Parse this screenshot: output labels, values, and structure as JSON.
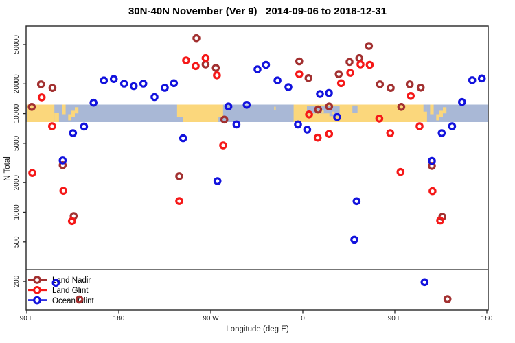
{
  "title": "30N-40N November (Ver 9)   2014-09-06 to 2018-12-31",
  "chart_data": {
    "type": "scatter",
    "title": "30N-40N November (Ver 9)   2014-09-06 to 2018-12-31",
    "xlabel": "Longitude (deg E)",
    "ylabel": "N Total",
    "x_axis": {
      "description": "degrees eastward from 90E, axis spans 450 degrees (90E to 180 wrapping past 180/90W/0/90E)",
      "span_deg": 450,
      "ticks": [
        {
          "off": 0,
          "label": "90 E"
        },
        {
          "off": 90,
          "label": "180"
        },
        {
          "off": 180,
          "label": "90 W"
        },
        {
          "off": 270,
          "label": "0"
        },
        {
          "off": 360,
          "label": "90 E"
        },
        {
          "off": 450,
          "label": "180"
        }
      ]
    },
    "y_axis": {
      "scale": "log10",
      "ticks": [
        200,
        500,
        1000,
        2000,
        5000,
        10000,
        20000,
        50000
      ],
      "approx_range": [
        100,
        77000
      ]
    },
    "grid": false,
    "legend_position": "bottom-left",
    "series": [
      {
        "name": "Land Nadir",
        "color": "#A23030",
        "marker": "open-circle",
        "points": [
          [
            4.9,
            11700
          ],
          [
            13.9,
            19800
          ],
          [
            25.1,
            18200
          ],
          [
            35.1,
            3000
          ],
          [
            45.9,
            915
          ],
          [
            51.5,
            131
          ],
          [
            149.1,
            2320
          ],
          [
            165.9,
            58000
          ],
          [
            174.9,
            31500
          ],
          [
            184.9,
            29000
          ],
          [
            193.2,
            8700
          ],
          [
            266.5,
            33800
          ],
          [
            275.6,
            22900
          ],
          [
            285.0,
            11000
          ],
          [
            295.7,
            11800
          ],
          [
            305.1,
            25100
          ],
          [
            315.7,
            33300
          ],
          [
            325.3,
            36500
          ],
          [
            334.7,
            48400
          ],
          [
            345.4,
            19800
          ],
          [
            356.0,
            18200
          ],
          [
            366.3,
            11700
          ],
          [
            374.6,
            19800
          ],
          [
            385.3,
            18300
          ],
          [
            396.3,
            2950
          ],
          [
            406.5,
            900
          ],
          [
            411.5,
            132
          ]
        ]
      },
      {
        "name": "Land Glint",
        "color": "#F51818",
        "marker": "open-circle",
        "points": [
          [
            5.4,
            2500
          ],
          [
            14.6,
            14600
          ],
          [
            24.7,
            7450
          ],
          [
            35.8,
            1650
          ],
          [
            44.1,
            815
          ],
          [
            149.1,
            1300
          ],
          [
            155.8,
            34600
          ],
          [
            165.2,
            30300
          ],
          [
            174.9,
            36500
          ],
          [
            186.0,
            24400
          ],
          [
            192.1,
            4760
          ],
          [
            266.5,
            25100
          ],
          [
            276.1,
            9800
          ],
          [
            284.6,
            5700
          ],
          [
            295.7,
            6230
          ],
          [
            307.4,
            20300
          ],
          [
            316.4,
            25900
          ],
          [
            326.4,
            31500
          ],
          [
            335.4,
            31200
          ],
          [
            344.8,
            8900
          ],
          [
            355.5,
            6350
          ],
          [
            365.6,
            2560
          ],
          [
            375.6,
            15100
          ],
          [
            384.2,
            7450
          ],
          [
            396.9,
            1640
          ],
          [
            404.3,
            825
          ]
        ]
      },
      {
        "name": "Ocean Glint",
        "color": "#1212DD",
        "marker": "open-circle",
        "points": [
          [
            28.4,
            193
          ],
          [
            35.1,
            3350
          ],
          [
            45.2,
            6350
          ],
          [
            56.0,
            7400
          ],
          [
            65.3,
            12900
          ],
          [
            75.4,
            21700
          ],
          [
            85.1,
            22400
          ],
          [
            95.2,
            20100
          ],
          [
            104.6,
            19000
          ],
          [
            114.0,
            20100
          ],
          [
            124.9,
            14700
          ],
          [
            135.0,
            18250
          ],
          [
            143.9,
            20300
          ],
          [
            152.9,
            5630
          ],
          [
            186.5,
            2070
          ],
          [
            197.2,
            11800
          ],
          [
            205.1,
            7760
          ],
          [
            215.1,
            12270
          ],
          [
            225.7,
            28100
          ],
          [
            234.0,
            31200
          ],
          [
            245.2,
            21700
          ],
          [
            255.9,
            18550
          ],
          [
            265.3,
            7760
          ],
          [
            274.3,
            6870
          ],
          [
            286.8,
            15800
          ],
          [
            295.5,
            16150
          ],
          [
            303.6,
            9230
          ],
          [
            320.4,
            528
          ],
          [
            322.6,
            1295
          ],
          [
            389.1,
            196
          ],
          [
            396.3,
            3320
          ],
          [
            405.9,
            6350
          ],
          [
            416.0,
            7450
          ],
          [
            425.7,
            13100
          ],
          [
            435.7,
            21800
          ],
          [
            445.1,
            22700
          ]
        ]
      }
    ],
    "map_band": {
      "note": "horizontal world-map strip (30N-40N coastlines) drawn across plot",
      "value_top": 12300,
      "value_bottom": 8200,
      "ocean_color": "#A9B8D6",
      "land_color": "#FBD77C",
      "land_blocks": [
        {
          "x": [
            0,
            27
          ],
          "f": [
            0,
            1
          ]
        },
        {
          "x": [
            27,
            31.5
          ],
          "f": [
            0.45,
            1
          ]
        },
        {
          "x": [
            34.5,
            38
          ],
          "f": [
            0,
            0.55
          ]
        },
        {
          "x": [
            40.5,
            43
          ],
          "f": [
            0.55,
            0.9
          ]
        },
        {
          "x": [
            43,
            47
          ],
          "f": [
            0.35,
            0.7
          ]
        },
        {
          "x": [
            47,
            50.5
          ],
          "f": [
            0.15,
            0.5
          ]
        },
        {
          "x": [
            147,
            192
          ],
          "f": [
            0,
            0.72
          ]
        },
        {
          "x": [
            152.5,
            187.5
          ],
          "f": [
            0.72,
            1
          ]
        },
        {
          "x": [
            242,
            243.5
          ],
          "f": [
            0.12,
            0.3
          ]
        },
        {
          "x": [
            261,
            391.5
          ],
          "f": [
            0,
            1
          ]
        },
        {
          "x": [
            394.5,
            398
          ],
          "f": [
            0,
            0.55
          ]
        },
        {
          "x": [
            400.5,
            403
          ],
          "f": [
            0.55,
            0.9
          ]
        },
        {
          "x": [
            403,
            407
          ],
          "f": [
            0.35,
            0.7
          ]
        },
        {
          "x": [
            407,
            410.5
          ],
          "f": [
            0.15,
            0.5
          ]
        }
      ],
      "water_patches": [
        {
          "x": [
            274,
            306
          ],
          "f": [
            0.1,
            0.5
          ]
        },
        {
          "x": [
            296,
            306
          ],
          "f": [
            0.5,
            0.66
          ]
        },
        {
          "x": [
            318.5,
            323.5
          ],
          "f": [
            0.05,
            0.45
          ]
        },
        {
          "x": [
            388,
            391.5
          ],
          "f": [
            0,
            0.4
          ]
        }
      ],
      "island_patches": [
        {
          "x": [
            283,
            284.5
          ],
          "f": [
            0.28,
            0.42
          ]
        },
        {
          "x": [
            288.5,
            290.5
          ],
          "f": [
            0.32,
            0.48
          ]
        },
        {
          "x": [
            299,
            301
          ],
          "f": [
            0.4,
            0.55
          ]
        }
      ]
    }
  },
  "legend": {
    "items": [
      {
        "label": "Land Nadir",
        "color": "#A23030"
      },
      {
        "label": "Land Glint",
        "color": "#F51818"
      },
      {
        "label": "Ocean Glint",
        "color": "#1212DD"
      }
    ]
  },
  "axis_titles": {
    "x": "Longitude (deg E)",
    "y": "N Total"
  },
  "frame_color": "#262626"
}
